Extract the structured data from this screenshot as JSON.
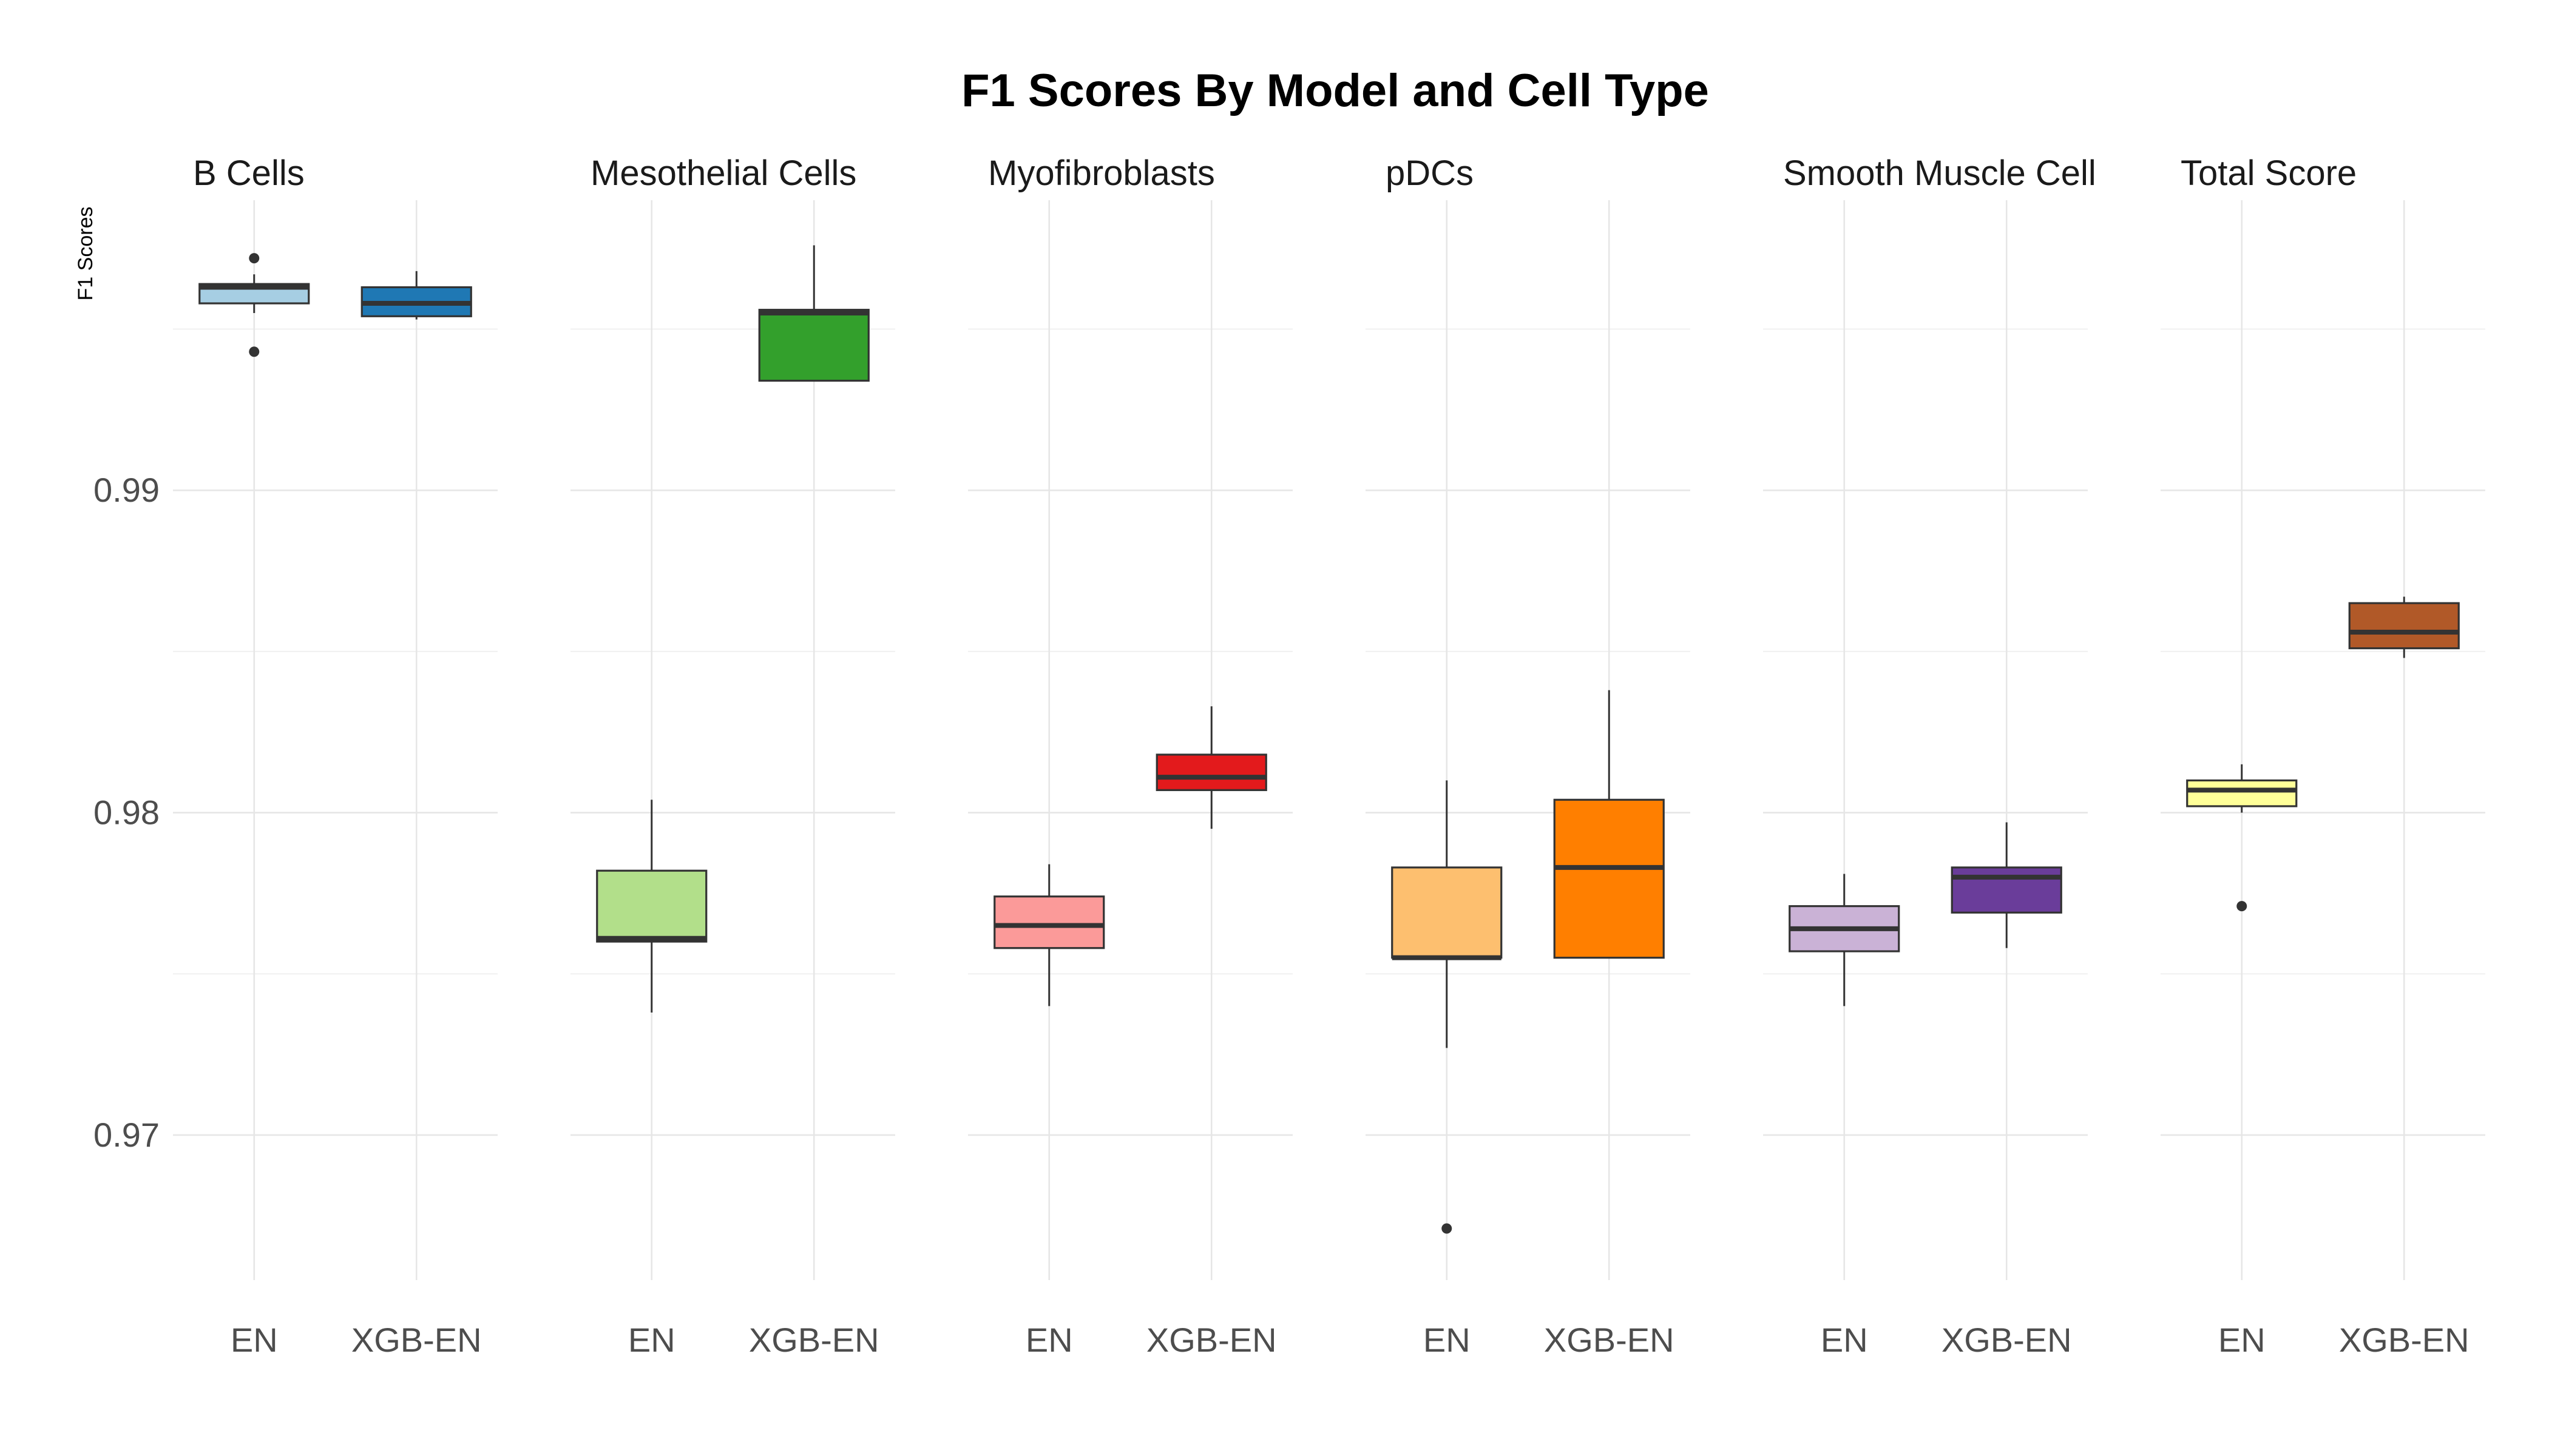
{
  "chart_data": {
    "type": "boxplot",
    "title": "F1 Scores By Model and Cell Type",
    "xlabel": "",
    "ylabel": "F1 Scores",
    "ylim": [
      0.9655,
      0.999
    ],
    "y_ticks": [
      0.97,
      0.98,
      0.99
    ],
    "y_tick_labels": [
      "0.97",
      "0.98",
      "0.99"
    ],
    "categories": [
      "EN",
      "XGB-EN"
    ],
    "grid": true,
    "legend": "none",
    "facets": [
      {
        "name": "B Cells",
        "boxes": [
          {
            "category": "EN",
            "fill": "#A6CEE3",
            "whisker_low": 0.9955,
            "q1": 0.9958,
            "median": 0.9963,
            "q3": 0.9964,
            "whisker_high": 0.9967,
            "outliers": [
              0.9972,
              0.9943
            ]
          },
          {
            "category": "XGB-EN",
            "fill": "#1F78B4",
            "whisker_low": 0.9953,
            "q1": 0.9954,
            "median": 0.9958,
            "q3": 0.9963,
            "whisker_high": 0.9968,
            "outliers": []
          }
        ]
      },
      {
        "name": "Mesothelial Cells",
        "boxes": [
          {
            "category": "EN",
            "fill": "#B2DF8A",
            "whisker_low": 0.9738,
            "q1": 0.976,
            "median": 0.9761,
            "q3": 0.9782,
            "whisker_high": 0.9804,
            "outliers": []
          },
          {
            "category": "XGB-EN",
            "fill": "#33A02C",
            "whisker_low": 0.9934,
            "q1": 0.9934,
            "median": 0.9955,
            "q3": 0.9956,
            "whisker_high": 0.9976,
            "outliers": []
          }
        ]
      },
      {
        "name": "Myofibroblasts",
        "boxes": [
          {
            "category": "EN",
            "fill": "#FB9A99",
            "whisker_low": 0.974,
            "q1": 0.9758,
            "median": 0.9765,
            "q3": 0.9774,
            "whisker_high": 0.9784,
            "outliers": []
          },
          {
            "category": "XGB-EN",
            "fill": "#E31A1C",
            "whisker_low": 0.9795,
            "q1": 0.9807,
            "median": 0.9811,
            "q3": 0.9818,
            "whisker_high": 0.9833,
            "outliers": []
          }
        ]
      },
      {
        "name": "pDCs",
        "boxes": [
          {
            "category": "EN",
            "fill": "#FDBF6F",
            "whisker_low": 0.9727,
            "q1": 0.9755,
            "median": 0.9755,
            "q3": 0.9783,
            "whisker_high": 0.981,
            "outliers": [
              0.9671
            ]
          },
          {
            "category": "XGB-EN",
            "fill": "#FF7F00",
            "whisker_low": 0.9755,
            "q1": 0.9755,
            "median": 0.9783,
            "q3": 0.9804,
            "whisker_high": 0.9838,
            "outliers": []
          }
        ]
      },
      {
        "name": "Smooth Muscle Cell",
        "boxes": [
          {
            "category": "EN",
            "fill": "#CAB2D6",
            "whisker_low": 0.974,
            "q1": 0.9757,
            "median": 0.9764,
            "q3": 0.9771,
            "whisker_high": 0.9781,
            "outliers": []
          },
          {
            "category": "XGB-EN",
            "fill": "#6A3D9A",
            "whisker_low": 0.9758,
            "q1": 0.9769,
            "median": 0.978,
            "q3": 0.9783,
            "whisker_high": 0.9797,
            "outliers": []
          }
        ]
      },
      {
        "name": "Total Score",
        "boxes": [
          {
            "category": "EN",
            "fill": "#FFFF99",
            "whisker_low": 0.98,
            "q1": 0.9802,
            "median": 0.9807,
            "q3": 0.981,
            "whisker_high": 0.9815,
            "outliers": [
              0.9771
            ]
          },
          {
            "category": "XGB-EN",
            "fill": "#B15928",
            "whisker_low": 0.9848,
            "q1": 0.9851,
            "median": 0.9856,
            "q3": 0.9865,
            "whisker_high": 0.9867,
            "outliers": []
          }
        ]
      }
    ]
  }
}
